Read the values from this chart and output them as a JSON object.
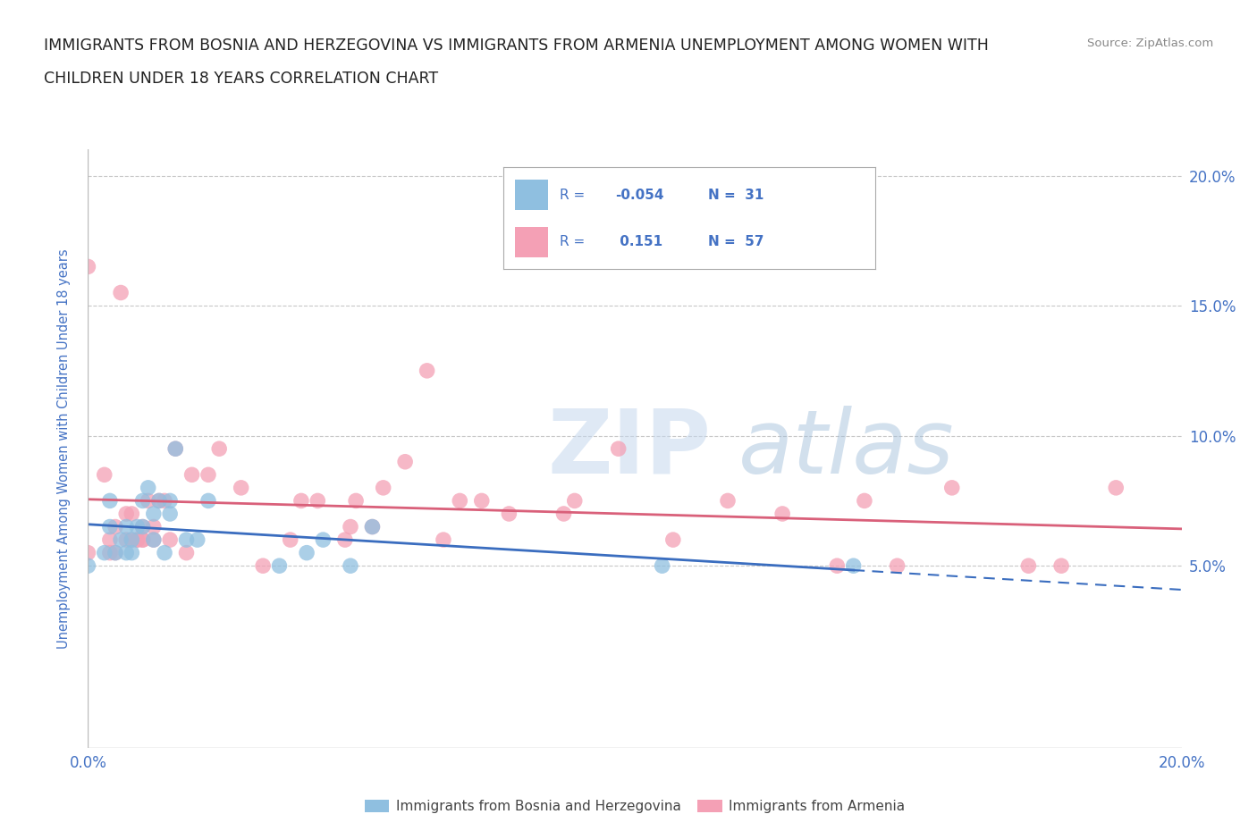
{
  "title_line1": "IMMIGRANTS FROM BOSNIA AND HERZEGOVINA VS IMMIGRANTS FROM ARMENIA UNEMPLOYMENT AMONG WOMEN WITH",
  "title_line2": "CHILDREN UNDER 18 YEARS CORRELATION CHART",
  "source": "Source: ZipAtlas.com",
  "ylabel": "Unemployment Among Women with Children Under 18 years",
  "xlim": [
    0.0,
    0.2
  ],
  "ylim": [
    -0.02,
    0.21
  ],
  "yticks": [
    0.0,
    0.05,
    0.1,
    0.15,
    0.2
  ],
  "ytick_labels": [
    "",
    "5.0%",
    "10.0%",
    "15.0%",
    "20.0%"
  ],
  "xticks": [
    0.0,
    0.025,
    0.05,
    0.075,
    0.1,
    0.125,
    0.15,
    0.175,
    0.2
  ],
  "xtick_labels": [
    "0.0%",
    "",
    "",
    "",
    "",
    "",
    "",
    "",
    "20.0%"
  ],
  "bosnia_color": "#8fbfe0",
  "armenia_color": "#f4a0b5",
  "bosnia_line_color": "#3a6dbf",
  "armenia_line_color": "#d9607a",
  "bosnia_R": -0.054,
  "bosnia_N": 31,
  "armenia_R": 0.151,
  "armenia_N": 57,
  "bosnia_scatter_x": [
    0.0,
    0.003,
    0.004,
    0.004,
    0.005,
    0.006,
    0.007,
    0.007,
    0.008,
    0.008,
    0.009,
    0.01,
    0.01,
    0.011,
    0.012,
    0.012,
    0.013,
    0.014,
    0.015,
    0.015,
    0.016,
    0.018,
    0.02,
    0.022,
    0.035,
    0.04,
    0.043,
    0.048,
    0.052,
    0.105,
    0.14
  ],
  "bosnia_scatter_y": [
    0.05,
    0.055,
    0.065,
    0.075,
    0.055,
    0.06,
    0.055,
    0.065,
    0.055,
    0.06,
    0.065,
    0.065,
    0.075,
    0.08,
    0.06,
    0.07,
    0.075,
    0.055,
    0.07,
    0.075,
    0.095,
    0.06,
    0.06,
    0.075,
    0.05,
    0.055,
    0.06,
    0.05,
    0.065,
    0.05,
    0.05
  ],
  "armenia_scatter_x": [
    0.0,
    0.0,
    0.003,
    0.004,
    0.004,
    0.005,
    0.005,
    0.006,
    0.007,
    0.007,
    0.008,
    0.008,
    0.009,
    0.009,
    0.01,
    0.01,
    0.01,
    0.011,
    0.012,
    0.012,
    0.013,
    0.014,
    0.015,
    0.016,
    0.018,
    0.019,
    0.022,
    0.024,
    0.028,
    0.032,
    0.037,
    0.039,
    0.042,
    0.047,
    0.048,
    0.049,
    0.052,
    0.054,
    0.058,
    0.062,
    0.065,
    0.068,
    0.072,
    0.077,
    0.087,
    0.089,
    0.097,
    0.107,
    0.117,
    0.127,
    0.137,
    0.142,
    0.148,
    0.158,
    0.172,
    0.178,
    0.188
  ],
  "armenia_scatter_y": [
    0.165,
    0.055,
    0.085,
    0.06,
    0.055,
    0.065,
    0.055,
    0.155,
    0.07,
    0.06,
    0.06,
    0.07,
    0.06,
    0.06,
    0.06,
    0.065,
    0.06,
    0.075,
    0.06,
    0.065,
    0.075,
    0.075,
    0.06,
    0.095,
    0.055,
    0.085,
    0.085,
    0.095,
    0.08,
    0.05,
    0.06,
    0.075,
    0.075,
    0.06,
    0.065,
    0.075,
    0.065,
    0.08,
    0.09,
    0.125,
    0.06,
    0.075,
    0.075,
    0.07,
    0.07,
    0.075,
    0.095,
    0.06,
    0.075,
    0.07,
    0.05,
    0.075,
    0.05,
    0.08,
    0.05,
    0.05,
    0.08
  ],
  "title_color": "#222222",
  "axis_color": "#4472c4",
  "grid_color": "#c8c8c8",
  "background_color": "#ffffff",
  "watermark_zip": "ZIP",
  "watermark_atlas": "atlas",
  "legend_bosnia_label": "Immigrants from Bosnia and Herzegovina",
  "legend_armenia_label": "Immigrants from Armenia"
}
